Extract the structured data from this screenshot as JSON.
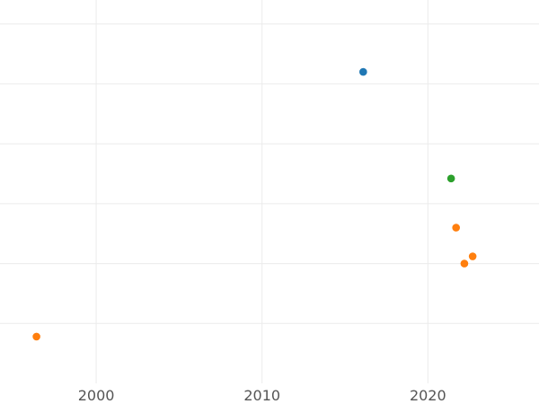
{
  "chart_data": {
    "type": "scatter",
    "title": "",
    "xlabel": "",
    "ylabel": "",
    "xlim": [
      1994.2,
      2026.7
    ],
    "ylim": [
      0,
      6.4
    ],
    "x_ticks": [
      2000,
      2010,
      2020
    ],
    "x_tick_labels": [
      "2000",
      "2010",
      "2020"
    ],
    "y_gridlines": [
      1,
      2,
      3,
      4,
      5,
      6
    ],
    "grid": true,
    "legend": "none",
    "series": [
      {
        "color": "#1f77b4",
        "points": [
          {
            "x": 2016.1,
            "y": 5.2
          }
        ]
      },
      {
        "color": "#ff7f0e",
        "points": [
          {
            "x": 1996.4,
            "y": 0.78
          },
          {
            "x": 2021.7,
            "y": 2.6
          },
          {
            "x": 2022.2,
            "y": 2.0
          },
          {
            "x": 2022.7,
            "y": 2.12
          }
        ]
      },
      {
        "color": "#2ca02c",
        "points": [
          {
            "x": 2021.4,
            "y": 3.42
          }
        ]
      }
    ]
  }
}
